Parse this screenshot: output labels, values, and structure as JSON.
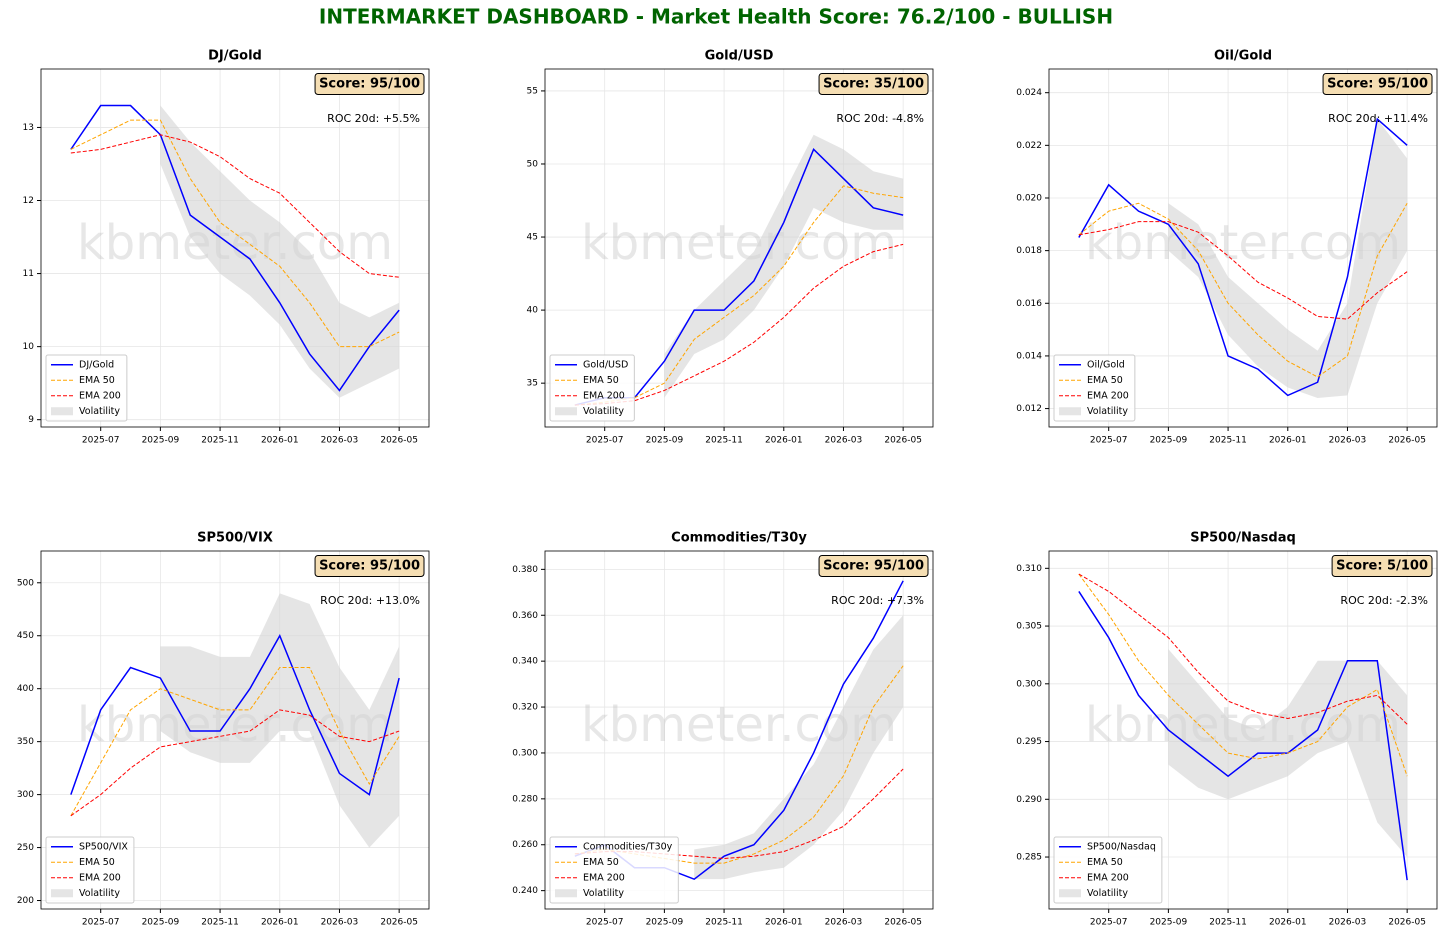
{
  "title": "INTERMARKET DASHBOARD - Market Health Score: 76.2/100 - BULLISH",
  "chart_data": [
    {
      "type": "line",
      "title": "DJ/Gold",
      "score": "Score: 95/100",
      "annotation": "ROC 20d: +5.5%",
      "watermark": "kbmeter.com",
      "grid": true,
      "legend": "lower left",
      "x": [
        "2025-06",
        "2025-07",
        "2025-08",
        "2025-09",
        "2025-10",
        "2025-11",
        "2025-12",
        "2026-01",
        "2026-02",
        "2026-03",
        "2026-04",
        "2026-05"
      ],
      "xlim": [
        "2025-05",
        "2026-06"
      ],
      "xticks": [
        "2025-07",
        "2025-09",
        "2025-11",
        "2026-01",
        "2026-03",
        "2026-05"
      ],
      "ylim": [
        8.9,
        13.8
      ],
      "yticks": [
        9,
        10,
        11,
        12,
        13
      ],
      "series": [
        {
          "name": "DJ/Gold",
          "color": "#0000ff",
          "linestyle": "solid",
          "values": [
            12.7,
            13.3,
            13.3,
            12.9,
            11.8,
            11.5,
            11.2,
            10.6,
            9.9,
            9.4,
            10.0,
            10.5
          ]
        },
        {
          "name": "EMA 50",
          "color": "#ffa500",
          "linestyle": "dashed",
          "values": [
            12.7,
            12.9,
            13.1,
            13.1,
            12.3,
            11.7,
            11.4,
            11.1,
            10.6,
            10.0,
            10.0,
            10.2
          ]
        },
        {
          "name": "EMA 200",
          "color": "#ff0000",
          "linestyle": "dashed",
          "values": [
            12.65,
            12.7,
            12.8,
            12.9,
            12.8,
            12.6,
            12.3,
            12.1,
            11.7,
            11.3,
            11.0,
            10.95
          ]
        },
        {
          "name": "Volatility",
          "color": "#d3d3d3",
          "type": "band",
          "lower": [
            null,
            null,
            null,
            12.5,
            11.5,
            11.0,
            10.7,
            10.3,
            9.7,
            9.3,
            9.5,
            9.7
          ],
          "upper": [
            null,
            null,
            null,
            13.3,
            12.8,
            12.4,
            12.0,
            11.7,
            11.3,
            10.6,
            10.4,
            10.6
          ]
        }
      ]
    },
    {
      "type": "line",
      "title": "Gold/USD",
      "score": "Score: 35/100",
      "annotation": "ROC 20d: -4.8%",
      "watermark": "kbmeter.com",
      "grid": true,
      "legend": "lower left",
      "x": [
        "2025-06",
        "2025-07",
        "2025-08",
        "2025-09",
        "2025-10",
        "2025-11",
        "2025-12",
        "2026-01",
        "2026-02",
        "2026-03",
        "2026-04",
        "2026-05"
      ],
      "xlim": [
        "2025-05",
        "2026-06"
      ],
      "xticks": [
        "2025-07",
        "2025-09",
        "2025-11",
        "2026-01",
        "2026-03",
        "2026-05"
      ],
      "ylim": [
        32,
        56.5
      ],
      "yticks": [
        35,
        40,
        45,
        50,
        55
      ],
      "series": [
        {
          "name": "Gold/USD",
          "color": "#0000ff",
          "linestyle": "solid",
          "values": [
            33.5,
            34,
            34,
            36.5,
            40,
            40,
            42,
            46,
            51,
            49,
            47,
            46.5
          ]
        },
        {
          "name": "EMA 50",
          "color": "#ffa500",
          "linestyle": "dashed",
          "values": [
            33.5,
            33.7,
            34,
            35,
            38,
            39.5,
            41,
            43,
            46,
            48.5,
            48,
            47.7
          ]
        },
        {
          "name": "EMA 200",
          "color": "#ff0000",
          "linestyle": "dashed",
          "values": [
            33.5,
            33.6,
            33.8,
            34.5,
            35.5,
            36.5,
            37.8,
            39.5,
            41.5,
            43,
            44,
            44.5
          ]
        },
        {
          "name": "Volatility",
          "color": "#d3d3d3",
          "type": "band",
          "lower": [
            null,
            null,
            null,
            34,
            37,
            38,
            40,
            43,
            47,
            46,
            45.5,
            45.5
          ],
          "upper": [
            null,
            null,
            null,
            37,
            40,
            42,
            44,
            48,
            52,
            51,
            49.5,
            49
          ]
        }
      ]
    },
    {
      "type": "line",
      "title": "Oil/Gold",
      "score": "Score: 95/100",
      "annotation": "ROC 20d: +11.4%",
      "watermark": "kbmeter.com",
      "grid": true,
      "legend": "lower left",
      "x": [
        "2025-06",
        "2025-07",
        "2025-08",
        "2025-09",
        "2025-10",
        "2025-11",
        "2025-12",
        "2026-01",
        "2026-02",
        "2026-03",
        "2026-04",
        "2026-05"
      ],
      "xlim": [
        "2025-05",
        "2026-06"
      ],
      "xticks": [
        "2025-07",
        "2025-09",
        "2025-11",
        "2026-01",
        "2026-03",
        "2026-05"
      ],
      "ylim": [
        0.0113,
        0.0249
      ],
      "yticks": [
        0.012,
        0.014,
        0.016,
        0.018,
        {
          "value": 0.02,
          "label": "0.020"
        },
        0.022,
        0.024
      ],
      "series": [
        {
          "name": "Oil/Gold",
          "color": "#0000ff",
          "linestyle": "solid",
          "values": [
            0.0185,
            0.0205,
            0.0195,
            0.019,
            0.0175,
            0.014,
            0.0135,
            0.0125,
            0.013,
            0.017,
            0.023,
            0.022
          ]
        },
        {
          "name": "EMA 50",
          "color": "#ffa500",
          "linestyle": "dashed",
          "values": [
            0.0186,
            0.0195,
            0.0198,
            0.0192,
            0.018,
            0.016,
            0.0148,
            0.0138,
            0.0132,
            0.014,
            0.0178,
            0.0198
          ]
        },
        {
          "name": "EMA 200",
          "color": "#ff0000",
          "linestyle": "dashed",
          "values": [
            0.0186,
            0.0188,
            0.0191,
            0.0191,
            0.0187,
            0.0178,
            0.0168,
            0.0162,
            0.0155,
            0.0154,
            0.0164,
            0.0172
          ]
        },
        {
          "name": "Volatility",
          "color": "#d3d3d3",
          "type": "band",
          "lower": [
            null,
            null,
            null,
            0.018,
            0.017,
            0.0148,
            0.0136,
            0.0128,
            0.0124,
            0.0125,
            0.016,
            0.018
          ],
          "upper": [
            null,
            null,
            null,
            0.0198,
            0.019,
            0.017,
            0.016,
            0.015,
            0.0142,
            0.016,
            0.023,
            0.0215
          ]
        }
      ]
    },
    {
      "type": "line",
      "title": "SP500/VIX",
      "score": "Score: 95/100",
      "annotation": "ROC 20d: +13.0%",
      "watermark": "kbmeter.com",
      "grid": true,
      "legend": "lower left",
      "x": [
        "2025-06",
        "2025-07",
        "2025-08",
        "2025-09",
        "2025-10",
        "2025-11",
        "2025-12",
        "2026-01",
        "2026-02",
        "2026-03",
        "2026-04",
        "2026-05"
      ],
      "xlim": [
        "2025-05",
        "2026-06"
      ],
      "xticks": [
        "2025-07",
        "2025-09",
        "2025-11",
        "2026-01",
        "2026-03",
        "2026-05"
      ],
      "ylim": [
        192,
        530
      ],
      "yticks": [
        200,
        250,
        300,
        350,
        400,
        450,
        500
      ],
      "series": [
        {
          "name": "SP500/VIX",
          "color": "#0000ff",
          "linestyle": "solid",
          "values": [
            300,
            380,
            420,
            410,
            360,
            360,
            400,
            450,
            380,
            320,
            300,
            410
          ]
        },
        {
          "name": "EMA 50",
          "color": "#ffa500",
          "linestyle": "dashed",
          "values": [
            280,
            330,
            380,
            400,
            390,
            380,
            380,
            420,
            420,
            360,
            310,
            355
          ]
        },
        {
          "name": "EMA 200",
          "color": "#ff0000",
          "linestyle": "dashed",
          "values": [
            280,
            300,
            325,
            345,
            350,
            355,
            360,
            380,
            375,
            355,
            350,
            360
          ]
        },
        {
          "name": "Volatility",
          "color": "#d3d3d3",
          "type": "band",
          "lower": [
            null,
            null,
            null,
            360,
            340,
            330,
            330,
            360,
            360,
            290,
            250,
            280
          ],
          "upper": [
            null,
            null,
            null,
            440,
            440,
            430,
            430,
            490,
            480,
            420,
            380,
            440
          ]
        }
      ]
    },
    {
      "type": "line",
      "title": "Commodities/T30y",
      "score": "Score: 95/100",
      "annotation": "ROC 20d: +7.3%",
      "watermark": "kbmeter.com",
      "grid": true,
      "legend": "lower left",
      "x": [
        "2025-06",
        "2025-07",
        "2025-08",
        "2025-09",
        "2025-10",
        "2025-11",
        "2025-12",
        "2026-01",
        "2026-02",
        "2026-03",
        "2026-04",
        "2026-05"
      ],
      "xlim": [
        "2025-05",
        "2026-06"
      ],
      "xticks": [
        "2025-07",
        "2025-09",
        "2025-11",
        "2026-01",
        "2026-03",
        "2026-05"
      ],
      "ylim": [
        0.232,
        0.388
      ],
      "yticks": [
        {
          "value": 0.24,
          "label": "0.240"
        },
        {
          "value": 0.26,
          "label": "0.260"
        },
        {
          "value": 0.28,
          "label": "0.280"
        },
        {
          "value": 0.3,
          "label": "0.300"
        },
        {
          "value": 0.32,
          "label": "0.320"
        },
        {
          "value": 0.34,
          "label": "0.340"
        },
        {
          "value": 0.36,
          "label": "0.360"
        },
        {
          "value": 0.38,
          "label": "0.380"
        }
      ],
      "series": [
        {
          "name": "Commodities/T30y",
          "color": "#0000ff",
          "linestyle": "solid",
          "values": [
            0.255,
            0.26,
            0.25,
            0.25,
            0.245,
            0.255,
            0.26,
            0.275,
            0.3,
            0.33,
            0.35,
            0.375
          ]
        },
        {
          "name": "EMA 50",
          "color": "#ffa500",
          "linestyle": "dashed",
          "values": [
            0.256,
            0.258,
            0.256,
            0.254,
            0.252,
            0.252,
            0.256,
            0.262,
            0.272,
            0.29,
            0.32,
            0.338
          ]
        },
        {
          "name": "EMA 200",
          "color": "#ff0000",
          "linestyle": "dashed",
          "values": [
            0.256,
            0.257,
            0.257,
            0.256,
            0.255,
            0.254,
            0.255,
            0.257,
            0.262,
            0.268,
            0.28,
            0.293
          ]
        },
        {
          "name": "Volatility",
          "color": "#d3d3d3",
          "type": "band",
          "lower": [
            null,
            null,
            null,
            null,
            0.245,
            0.245,
            0.248,
            0.25,
            0.26,
            0.275,
            0.3,
            0.32
          ],
          "upper": [
            null,
            null,
            null,
            null,
            0.258,
            0.26,
            0.265,
            0.28,
            0.295,
            0.32,
            0.345,
            0.36
          ]
        }
      ]
    },
    {
      "type": "line",
      "title": "SP500/Nasdaq",
      "score": "Score: 5/100",
      "annotation": "ROC 20d: -2.3%",
      "watermark": "kbmeter.com",
      "grid": true,
      "legend": "lower left",
      "x": [
        "2025-06",
        "2025-07",
        "2025-08",
        "2025-09",
        "2025-10",
        "2025-11",
        "2025-12",
        "2026-01",
        "2026-02",
        "2026-03",
        "2026-04",
        "2026-05"
      ],
      "xlim": [
        "2025-05",
        "2026-06"
      ],
      "xticks": [
        "2025-07",
        "2025-09",
        "2025-11",
        "2026-01",
        "2026-03",
        "2026-05"
      ],
      "ylim": [
        0.2805,
        0.3115
      ],
      "yticks": [
        0.285,
        {
          "value": 0.29,
          "label": "0.290"
        },
        0.295,
        {
          "value": 0.3,
          "label": "0.300"
        },
        0.305,
        {
          "value": 0.31,
          "label": "0.310"
        }
      ],
      "series": [
        {
          "name": "SP500/Nasdaq",
          "color": "#0000ff",
          "linestyle": "solid",
          "values": [
            0.308,
            0.304,
            0.299,
            0.296,
            0.294,
            0.292,
            0.294,
            0.294,
            0.296,
            0.302,
            0.302,
            0.283
          ]
        },
        {
          "name": "EMA 50",
          "color": "#ffa500",
          "linestyle": "dashed",
          "values": [
            0.3095,
            0.306,
            0.302,
            0.299,
            0.2965,
            0.294,
            0.2935,
            0.294,
            0.295,
            0.298,
            0.2995,
            0.292
          ]
        },
        {
          "name": "EMA 200",
          "color": "#ff0000",
          "linestyle": "dashed",
          "values": [
            0.3095,
            0.308,
            0.306,
            0.304,
            0.301,
            0.2985,
            0.2975,
            0.297,
            0.2975,
            0.2985,
            0.299,
            0.2965
          ]
        },
        {
          "name": "Volatility",
          "color": "#d3d3d3",
          "type": "band",
          "lower": [
            null,
            null,
            null,
            0.293,
            0.291,
            0.29,
            0.291,
            0.292,
            0.294,
            0.295,
            0.288,
            0.285
          ],
          "upper": [
            null,
            null,
            null,
            0.303,
            0.3,
            0.297,
            0.296,
            0.298,
            0.302,
            0.302,
            0.302,
            0.299
          ]
        }
      ]
    }
  ]
}
